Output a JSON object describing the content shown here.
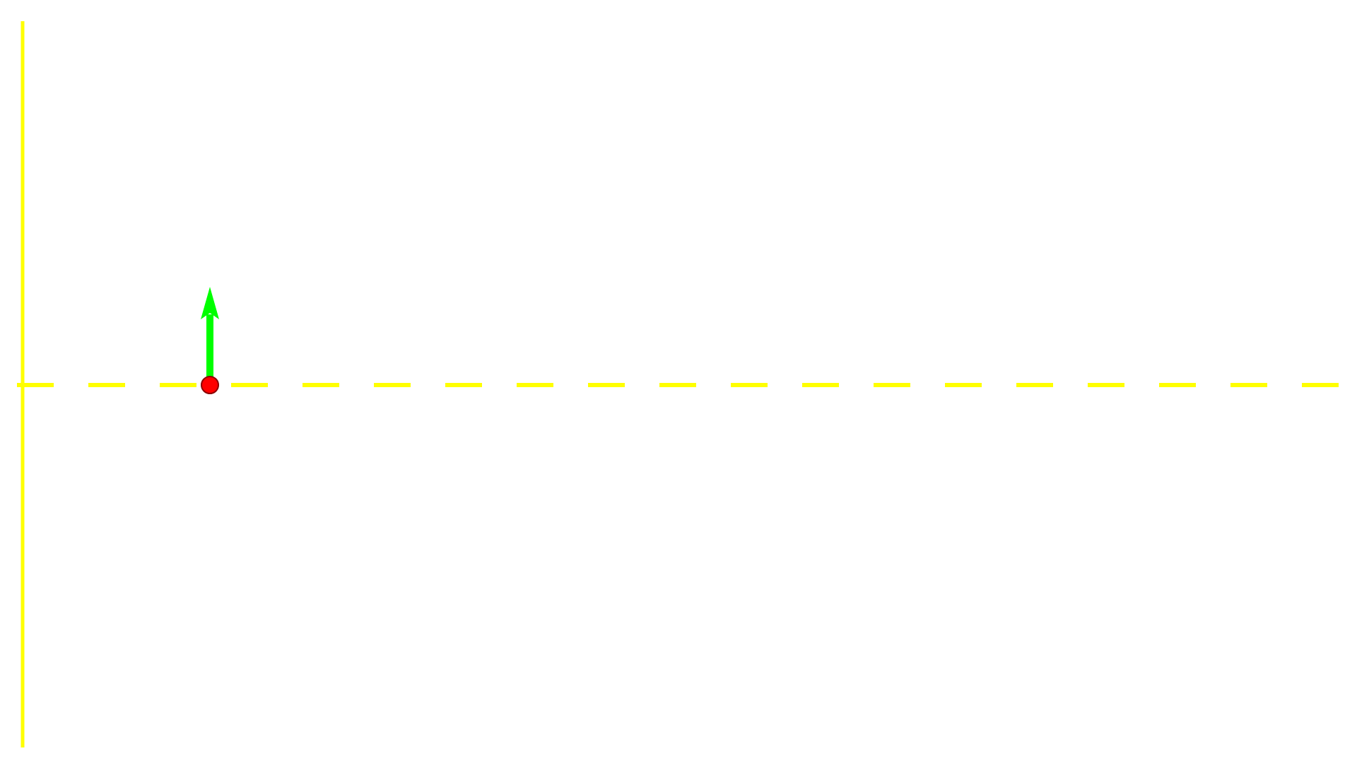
{
  "colors": {
    "background": "#ffffff",
    "axis": "#ffff00",
    "arrow": "#00ff00",
    "point_fill": "#ff0000",
    "point_stroke": "#8b0000"
  },
  "elements": {
    "vertical_axis": {
      "style": "solid"
    },
    "horizontal_line": {
      "style": "dashed"
    },
    "vector": {
      "direction": "up"
    },
    "point": {
      "shape": "circle"
    }
  }
}
